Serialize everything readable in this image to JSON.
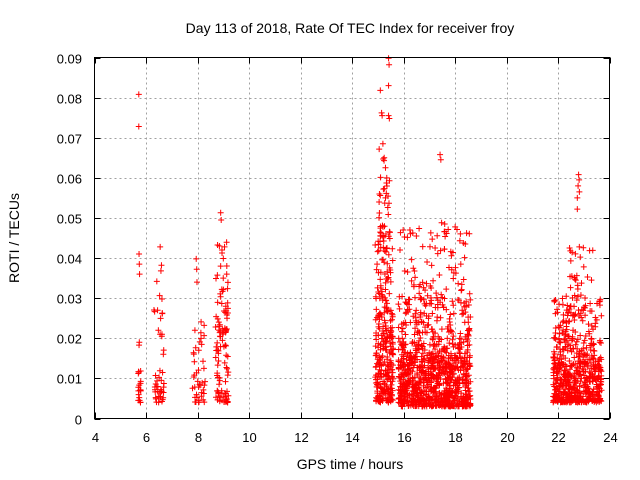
{
  "chart_data": {
    "type": "scatter",
    "title": "Day 113 of 2018, Rate Of TEC Index for receiver froy",
    "xlabel": "GPS time / hours",
    "ylabel": "ROTI / TECUs",
    "xlim": [
      4,
      24
    ],
    "ylim": [
      0,
      0.09
    ],
    "xticks": [
      "4",
      "6",
      "8",
      "10",
      "12",
      "14",
      "16",
      "18",
      "20",
      "22",
      "24"
    ],
    "yticks": [
      "0",
      "0.01",
      "0.02",
      "0.03",
      "0.04",
      "0.05",
      "0.06",
      "0.07",
      "0.08",
      "0.09"
    ],
    "grid": true,
    "marker": "+",
    "color": "#ff0000",
    "clusters": [
      {
        "x_range": [
          5.7,
          5.8
        ],
        "y_range": [
          0.004,
          0.012
        ],
        "count": 18
      },
      {
        "x_range": [
          6.3,
          6.7
        ],
        "y_range": [
          0.004,
          0.012
        ],
        "count": 30
      },
      {
        "x_range": [
          6.3,
          6.7
        ],
        "y_range": [
          0.015,
          0.035
        ],
        "count": 10
      },
      {
        "x_range": [
          7.8,
          8.3
        ],
        "y_range": [
          0.004,
          0.015
        ],
        "count": 30
      },
      {
        "x_range": [
          7.8,
          8.3
        ],
        "y_range": [
          0.016,
          0.025
        ],
        "count": 10
      },
      {
        "x_range": [
          8.7,
          9.2
        ],
        "y_range": [
          0.004,
          0.02
        ],
        "count": 55
      },
      {
        "x_range": [
          8.7,
          9.2
        ],
        "y_range": [
          0.02,
          0.045
        ],
        "count": 45
      },
      {
        "x_range": [
          14.9,
          15.6
        ],
        "y_range": [
          0.004,
          0.02
        ],
        "count": 180
      },
      {
        "x_range": [
          14.9,
          15.6
        ],
        "y_range": [
          0.02,
          0.045
        ],
        "count": 110
      },
      {
        "x_range": [
          15.0,
          15.5
        ],
        "y_range": [
          0.045,
          0.068
        ],
        "count": 35
      },
      {
        "x_range": [
          15.8,
          18.6
        ],
        "y_range": [
          0.003,
          0.015
        ],
        "count": 700
      },
      {
        "x_range": [
          15.8,
          18.6
        ],
        "y_range": [
          0.015,
          0.03
        ],
        "count": 260
      },
      {
        "x_range": [
          15.8,
          18.6
        ],
        "y_range": [
          0.03,
          0.048
        ],
        "count": 80
      },
      {
        "x_range": [
          21.8,
          23.7
        ],
        "y_range": [
          0.004,
          0.015
        ],
        "count": 420
      },
      {
        "x_range": [
          21.8,
          23.7
        ],
        "y_range": [
          0.015,
          0.03
        ],
        "count": 160
      },
      {
        "x_range": [
          22.3,
          23.4
        ],
        "y_range": [
          0.03,
          0.043
        ],
        "count": 25
      }
    ],
    "points": [
      [
        5.72,
        0.0808
      ],
      [
        5.72,
        0.0728
      ],
      [
        5.73,
        0.041
      ],
      [
        5.74,
        0.0385
      ],
      [
        5.75,
        0.036
      ],
      [
        5.74,
        0.019
      ],
      [
        5.73,
        0.0183
      ],
      [
        6.55,
        0.0428
      ],
      [
        6.6,
        0.0382
      ],
      [
        6.58,
        0.0368
      ],
      [
        6.62,
        0.0298
      ],
      [
        6.42,
        0.0342
      ],
      [
        6.45,
        0.027
      ],
      [
        6.48,
        0.022
      ],
      [
        6.62,
        0.021
      ],
      [
        7.95,
        0.0398
      ],
      [
        7.97,
        0.0372
      ],
      [
        7.98,
        0.034
      ],
      [
        7.9,
        0.022
      ],
      [
        8.05,
        0.017
      ],
      [
        8.9,
        0.0513
      ],
      [
        8.92,
        0.0495
      ],
      [
        8.85,
        0.043
      ],
      [
        8.95,
        0.042
      ],
      [
        9.05,
        0.0428
      ],
      [
        8.9,
        0.038
      ],
      [
        9.0,
        0.035
      ],
      [
        9.1,
        0.028
      ],
      [
        15.42,
        0.0898
      ],
      [
        15.44,
        0.0882
      ],
      [
        15.42,
        0.083
      ],
      [
        15.1,
        0.0818
      ],
      [
        15.15,
        0.0762
      ],
      [
        15.17,
        0.0755
      ],
      [
        15.42,
        0.0755
      ],
      [
        15.45,
        0.0748
      ],
      [
        15.2,
        0.0685
      ],
      [
        15.25,
        0.065
      ],
      [
        15.3,
        0.0625
      ],
      [
        15.35,
        0.06
      ],
      [
        15.22,
        0.0572
      ],
      [
        15.3,
        0.055
      ],
      [
        17.42,
        0.0658
      ],
      [
        17.45,
        0.0645
      ],
      [
        17.48,
        0.0488
      ],
      [
        17.6,
        0.0485
      ],
      [
        16.5,
        0.0455
      ],
      [
        18.45,
        0.0462
      ],
      [
        18.4,
        0.0435
      ],
      [
        22.8,
        0.0608
      ],
      [
        22.82,
        0.0595
      ],
      [
        22.78,
        0.058
      ],
      [
        22.83,
        0.0565
      ],
      [
        22.75,
        0.055
      ],
      [
        22.75,
        0.0522
      ],
      [
        22.45,
        0.0425
      ],
      [
        22.48,
        0.0418
      ],
      [
        23.0,
        0.0378
      ],
      [
        23.3,
        0.0345
      ]
    ]
  }
}
